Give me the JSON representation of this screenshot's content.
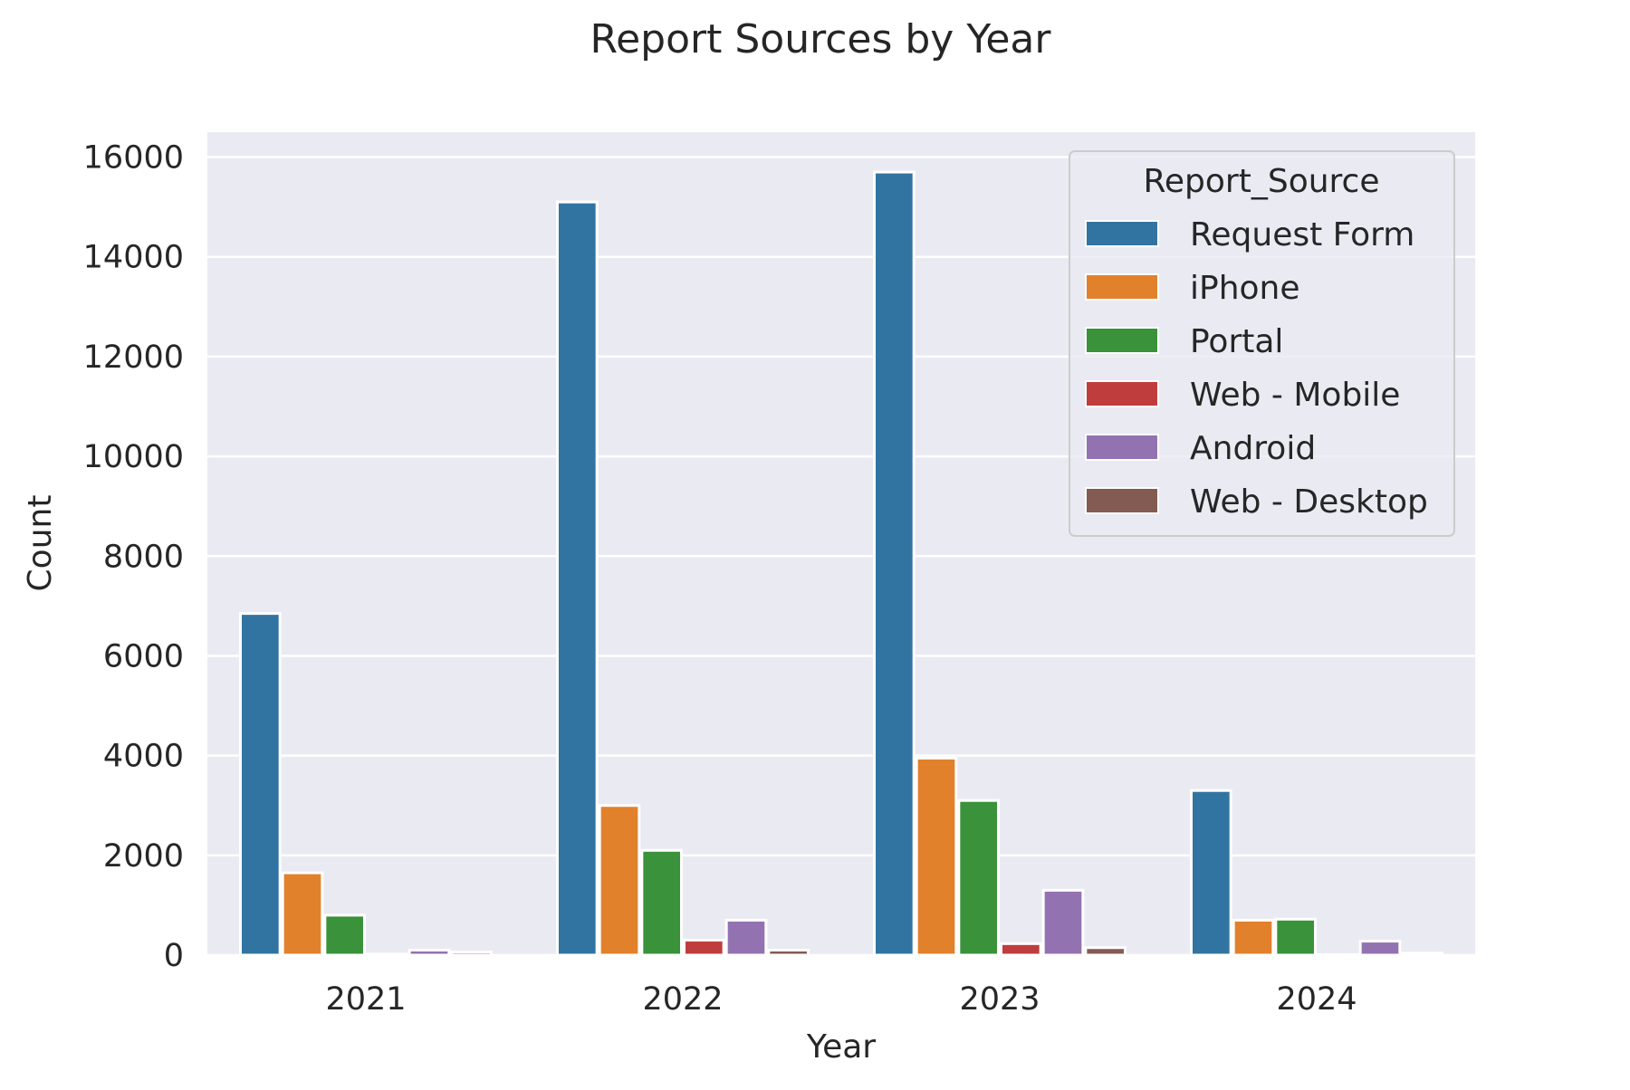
{
  "chart_data": {
    "type": "bar",
    "title": "Report Sources by Year",
    "xlabel": "Year",
    "ylabel": "Count",
    "categories": [
      "2021",
      "2022",
      "2023",
      "2024"
    ],
    "ylim": [
      0,
      16500
    ],
    "yticks": [
      0,
      2000,
      4000,
      6000,
      8000,
      10000,
      12000,
      14000,
      16000
    ],
    "grid": true,
    "legend": {
      "title": "Report_Source",
      "placement": "top-right"
    },
    "series": [
      {
        "name": "Request Form",
        "color": "#3274a1",
        "values": [
          6850,
          15100,
          15700,
          3300
        ]
      },
      {
        "name": "iPhone",
        "color": "#e1812c",
        "values": [
          1650,
          3000,
          3950,
          700
        ]
      },
      {
        "name": "Portal",
        "color": "#3a923a",
        "values": [
          800,
          2100,
          3100,
          720
        ]
      },
      {
        "name": "Web - Mobile",
        "color": "#c03d3e",
        "values": [
          20,
          300,
          230,
          10
        ]
      },
      {
        "name": "Android",
        "color": "#9372b2",
        "values": [
          100,
          700,
          1300,
          280
        ]
      },
      {
        "name": "Web - Desktop",
        "color": "#845b53",
        "values": [
          60,
          100,
          150,
          40
        ]
      }
    ]
  }
}
